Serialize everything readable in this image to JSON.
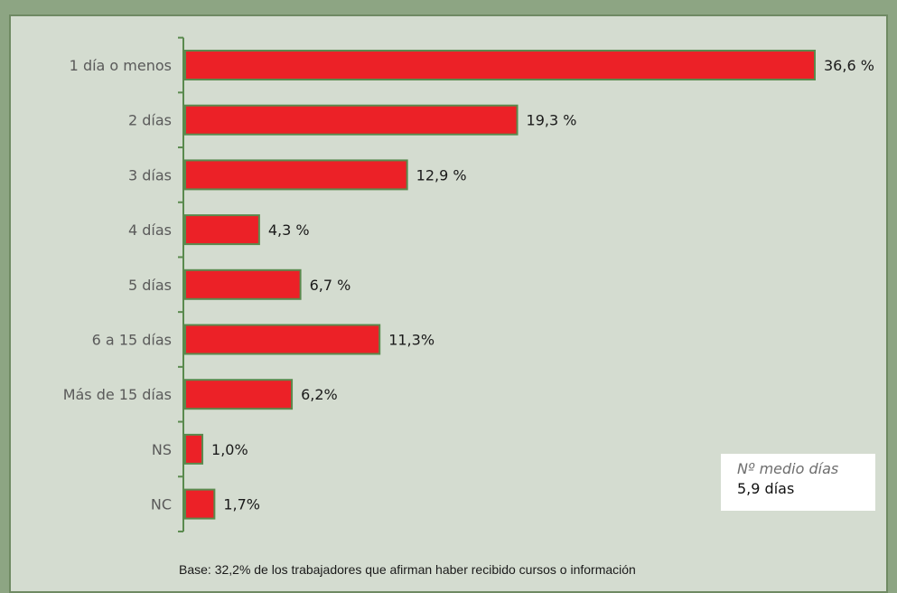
{
  "chart_data": {
    "type": "bar",
    "orientation": "horizontal",
    "categories": [
      "1 día o menos",
      "2 días",
      "3 días",
      "4 días",
      "5 días",
      "6 a 15 días",
      "Más de 15 días",
      "NS",
      "NC"
    ],
    "values": [
      36.6,
      19.3,
      12.9,
      4.3,
      6.7,
      11.3,
      6.2,
      1.0,
      1.7
    ],
    "value_labels": [
      "36,6 %",
      "19,3 %",
      "12,9 %",
      "4,3 %",
      "6,7 %",
      "11,3%",
      "6,2%",
      "1,0%",
      "1,7%"
    ],
    "xlim": [
      0,
      36.6
    ],
    "grid": false,
    "bar_color": "#ec2127",
    "bar_outline_color": "#5a8a4e"
  },
  "infobox": {
    "title": "Nº medio días",
    "value": "5,9 días"
  },
  "footnote": "Base: 32,2% de los trabajadores que afirman haber recibido cursos o información",
  "colors": {
    "frame": "#8da583",
    "panel": "#d4dcd0",
    "axis": "#5a8a4e"
  }
}
